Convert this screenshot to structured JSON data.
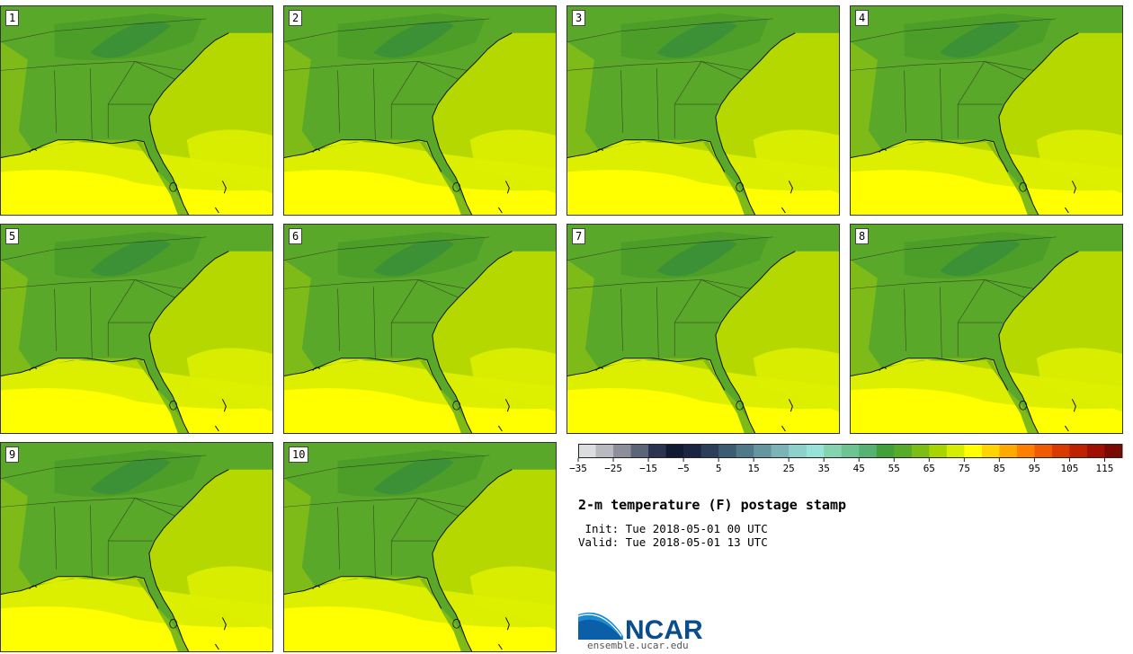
{
  "panels": [
    {
      "label": "1"
    },
    {
      "label": "2"
    },
    {
      "label": "3"
    },
    {
      "label": "4"
    },
    {
      "label": "5"
    },
    {
      "label": "6"
    },
    {
      "label": "7"
    },
    {
      "label": "8"
    },
    {
      "label": "9"
    },
    {
      "label": "10"
    }
  ],
  "colorbar": {
    "min": -35,
    "max": 120,
    "step": 5,
    "tick_labels": [
      "−35",
      "−25",
      "−15",
      "−5",
      "5",
      "15",
      "25",
      "35",
      "45",
      "55",
      "65",
      "75",
      "85",
      "95",
      "105",
      "115"
    ],
    "tick_values": [
      -35,
      -25,
      -15,
      -5,
      5,
      15,
      25,
      35,
      45,
      55,
      65,
      75,
      85,
      95,
      105,
      115
    ],
    "colors": [
      "#dcdde0",
      "#b8bac0",
      "#8c8f9a",
      "#5c6478",
      "#2a3450",
      "#121a33",
      "#1b2542",
      "#2b3f5b",
      "#3c5c72",
      "#4f7888",
      "#6596a0",
      "#7bb3b6",
      "#8dd0cc",
      "#98e3d8",
      "#84d4b0",
      "#6ec392",
      "#56b272",
      "#42a038",
      "#56ab28",
      "#7cbd16",
      "#a8d400",
      "#d6ec00",
      "#ffff00",
      "#ffd400",
      "#ffaa00",
      "#ff8000",
      "#f05a00",
      "#d83a00",
      "#be2200",
      "#a01000",
      "#7a0a00"
    ]
  },
  "title": "2-m temperature (F) postage stamp",
  "init_text": " Init: Tue 2018-05-01 00 UTC",
  "valid_text": "Valid: Tue 2018-05-01 13 UTC",
  "logo_text": "NCAR",
  "url_text": "ensemble.ucar.edu",
  "map_colors": {
    "land_cool": "#4c9e28",
    "land_mid": "#5aa82a",
    "land_warm": "#7ebb18",
    "ocean_warm": "#b5d800",
    "ocean_warmer": "#dcef00",
    "gulf_hot": "#ffff00",
    "mountains": "#3a8e38"
  }
}
